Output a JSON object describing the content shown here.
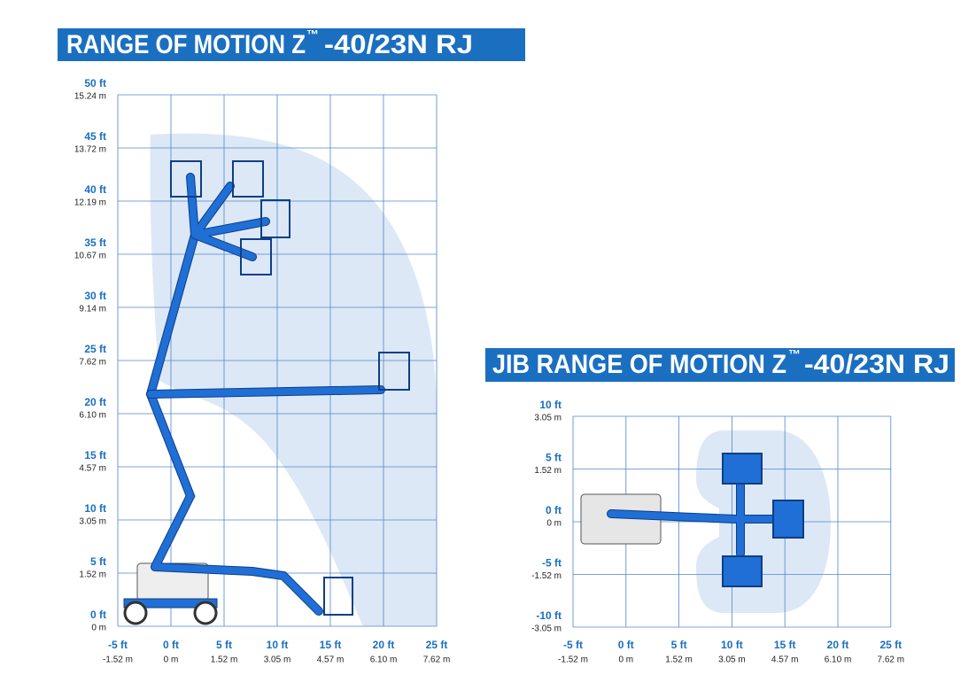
{
  "left": {
    "title": {
      "text": "RANGE OF MOTION Z",
      "mark": "™",
      "model": "-40/23N RJ"
    },
    "y_ticks": [
      {
        "ft": "50 ft",
        "m": "15.24 m"
      },
      {
        "ft": "45 ft",
        "m": "13.72 m"
      },
      {
        "ft": "40 ft",
        "m": "12.19 m"
      },
      {
        "ft": "35 ft",
        "m": "10.67 m"
      },
      {
        "ft": "30 ft",
        "m": "9.14 m"
      },
      {
        "ft": "25 ft",
        "m": "7.62 m"
      },
      {
        "ft": "20 ft",
        "m": "6.10 m"
      },
      {
        "ft": "15 ft",
        "m": "4.57 m"
      },
      {
        "ft": "10 ft",
        "m": "3.05 m"
      },
      {
        "ft": "5 ft",
        "m": "1.52 m"
      },
      {
        "ft": "0 ft",
        "m": "0 m"
      }
    ],
    "x_ticks": [
      {
        "ft": "-5 ft",
        "m": "-1.52 m"
      },
      {
        "ft": "0 ft",
        "m": "0 m"
      },
      {
        "ft": "5 ft",
        "m": "1.52 m"
      },
      {
        "ft": "10 ft",
        "m": "3.05 m"
      },
      {
        "ft": "15 ft",
        "m": "4.57 m"
      },
      {
        "ft": "20 ft",
        "m": "6.10 m"
      },
      {
        "ft": "25 ft",
        "m": "7.62 m"
      }
    ]
  },
  "right": {
    "title": {
      "text": "JIB RANGE OF MOTION Z",
      "mark": "™",
      "model": "-40/23N RJ"
    },
    "y_ticks": [
      {
        "ft": "10 ft",
        "m": "3.05 m"
      },
      {
        "ft": "5 ft",
        "m": "1.52 m"
      },
      {
        "ft": "0 ft",
        "m": "0 m"
      },
      {
        "ft": "-5 ft",
        "m": "-1.52 m"
      },
      {
        "ft": "-10 ft",
        "m": "-3.05 m"
      }
    ],
    "x_ticks": [
      {
        "ft": "-5 ft",
        "m": "-1.52 m"
      },
      {
        "ft": "0 ft",
        "m": "0 m"
      },
      {
        "ft": "5 ft",
        "m": "1.52 m"
      },
      {
        "ft": "10 ft",
        "m": "3.05 m"
      },
      {
        "ft": "15 ft",
        "m": "4.57 m"
      },
      {
        "ft": "20 ft",
        "m": "6.10 m"
      },
      {
        "ft": "25 ft",
        "m": "7.62 m"
      }
    ]
  }
}
